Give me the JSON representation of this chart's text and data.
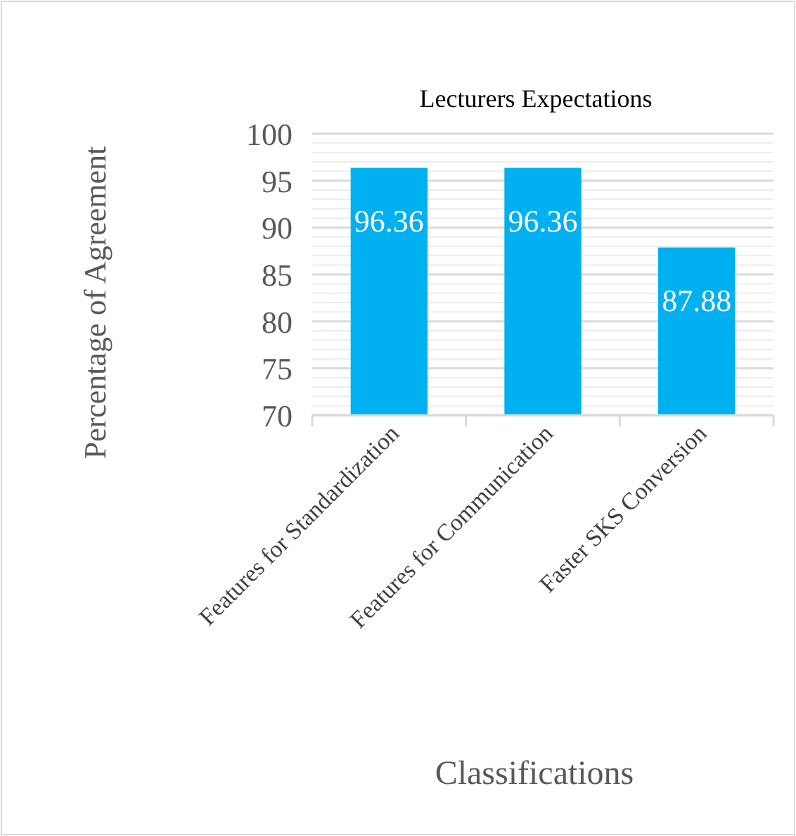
{
  "chart_data": {
    "type": "bar",
    "title": "Lecturers Expectations",
    "xlabel": "Classifications",
    "ylabel": "Percentage of Agreement",
    "categories": [
      "Features for Standardization",
      "Features for Communication",
      "Faster SKS Conversion"
    ],
    "values": [
      96.36,
      96.36,
      87.88
    ],
    "color": "#00b0f0",
    "ylim": [
      70,
      100
    ],
    "yticks": [
      70,
      75,
      80,
      85,
      90,
      95,
      100
    ],
    "grid": "y",
    "data_labels": true
  }
}
